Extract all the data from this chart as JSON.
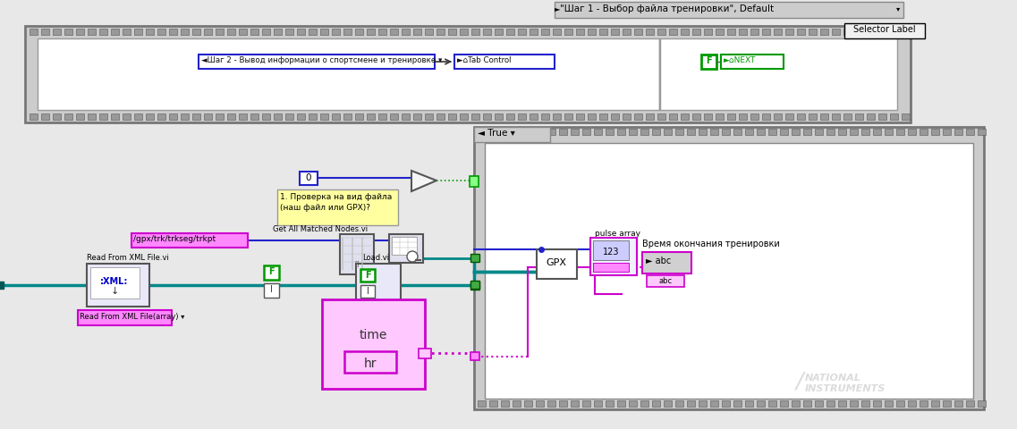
{
  "bg_color": "#e8e8e8",
  "title_bar_text": "\"Шаг 1 - Выбор файла тренировки\", Default",
  "selector_label": "Selector Label",
  "tab_step2_text": "◄Шаг 2 - Вывод информации о спортсмене и тренировке ▾",
  "tab_control_text": "►⌂Tab Control",
  "green_f": "F",
  "next_text": "►⌂NEXT",
  "true_label": "◄ True ▾",
  "zero_label": "0",
  "comment_line1": "1. Проверка на вид файла",
  "comment_line2": "(наш файл или GPX)?",
  "path_label": "/gpx/trk/trkseg/trkpt",
  "get_all_nodes": "Get All Matched Nodes.vi",
  "load_vi": "Load.vi",
  "read_xml_label": "Read From XML File.vi",
  "read_xml_array_label": "Read From XML File(array) ▾",
  "time_label": "time",
  "hr_label": "hr",
  "gpx_label": "GPX",
  "pulse_array_label": "pulse array",
  "end_time_label": "Время окончания тренировки",
  "abc_text": "► abc",
  "abc_label": "abc"
}
